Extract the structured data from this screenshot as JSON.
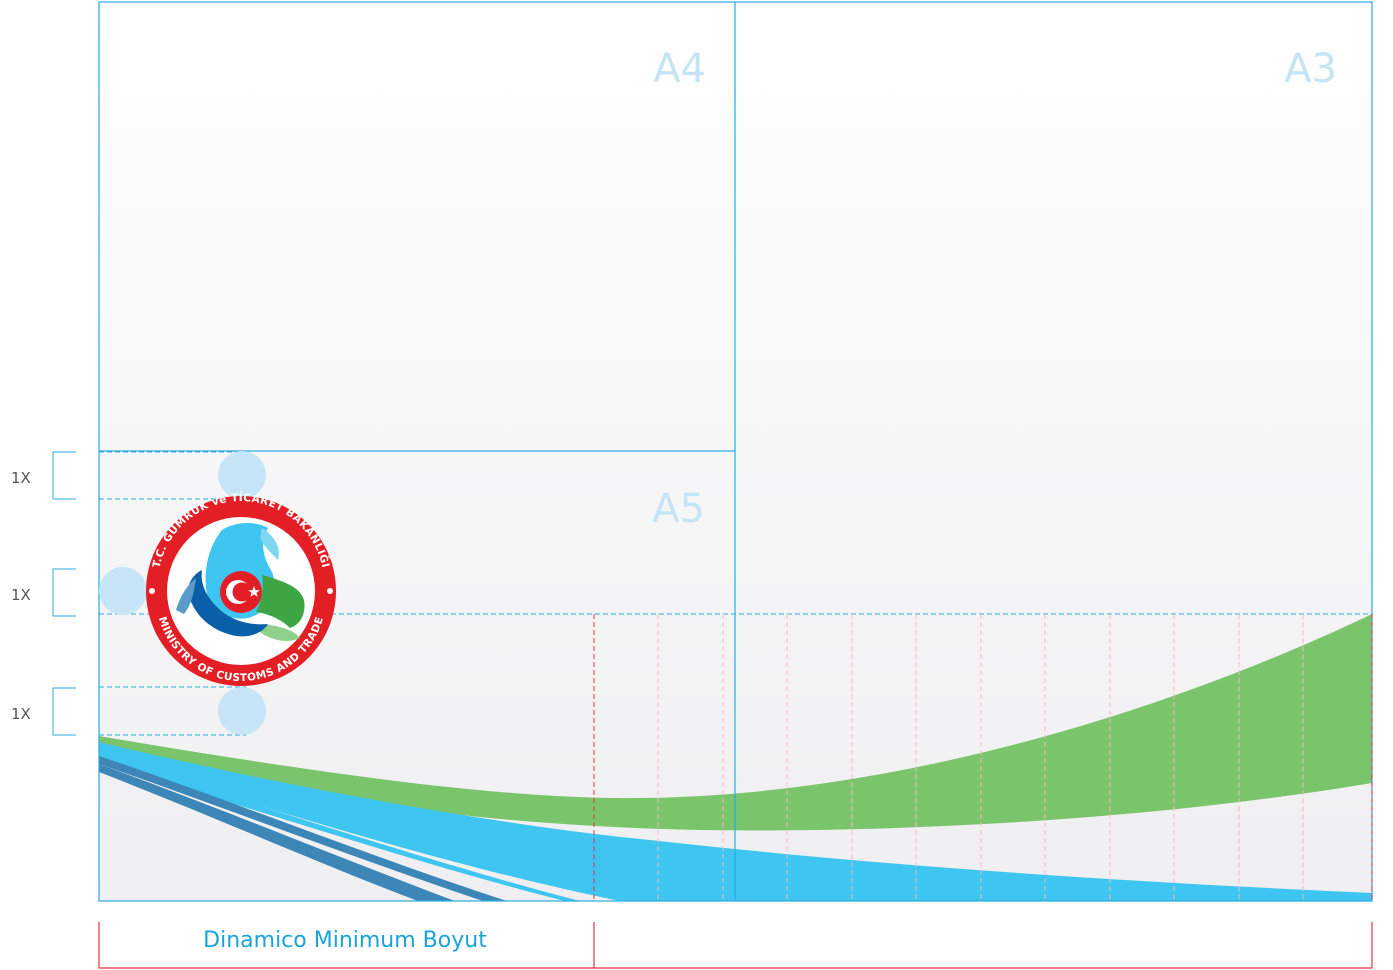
{
  "page_labels": {
    "a3": "A3",
    "a4": "A4",
    "a5": "A5"
  },
  "spacing_labels": [
    "1X",
    "1X",
    "1X"
  ],
  "dimension_label": "Dinamico Minimum Boyut",
  "logo": {
    "top_text": "T.C. GÜMRÜK ve TİCARET BAKANLIĞI",
    "bottom_text": "MINISTRY OF CUSTOMS AND TRADE",
    "icon": "crescent-star-emblem"
  },
  "colors": {
    "guide_blue": "#29abe2",
    "guide_red": "#e8333a",
    "label_blue": "#c5e4f5",
    "brand_green": "#7ac56c",
    "brand_blue": "#3ec5f0",
    "brand_dark_blue": "#3d86b8",
    "seal_red": "#e31e24"
  }
}
